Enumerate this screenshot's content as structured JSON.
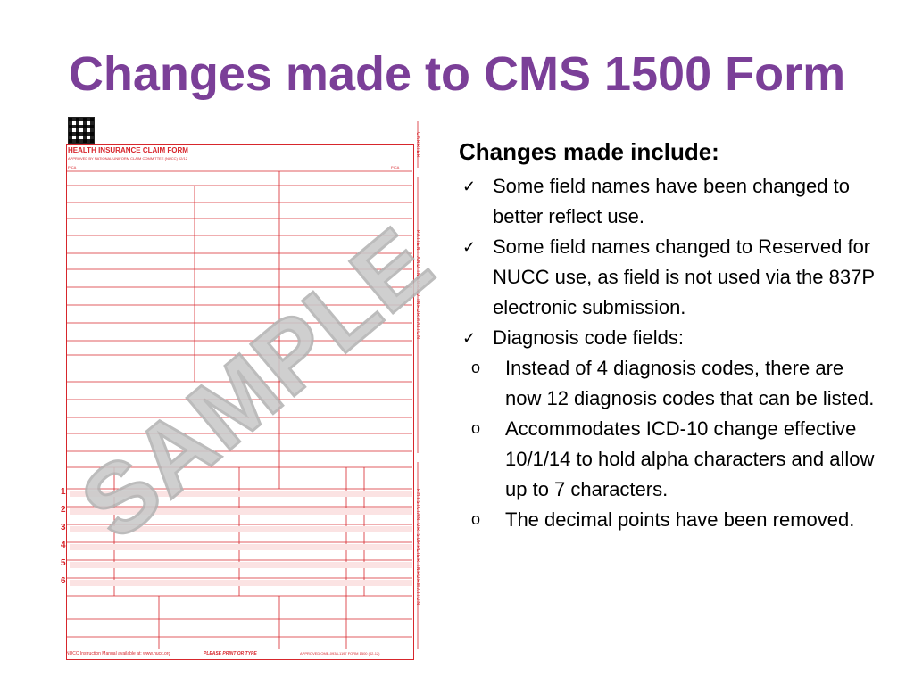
{
  "slide": {
    "title": "Changes made to CMS 1500 Form"
  },
  "form_image": {
    "heading": "HEALTH INSURANCE CLAIM FORM",
    "subheading": "APPROVED BY NATIONAL UNIFORM CLAIM COMMITTEE (NUCC) 02/12",
    "pica_left": "PICA",
    "pica_right": "PICA",
    "watermark": "SAMPLE",
    "side_top": "CARRIER",
    "side_middle": "PATIENT AND INSURED INFORMATION",
    "side_bottom": "PHYSICIAN OR SUPPLIER INFORMATION",
    "line_numbers": [
      "1",
      "2",
      "3",
      "4",
      "5",
      "6"
    ],
    "footer_left": "NUCC Instruction Manual available at: www.nucc.org",
    "footer_center": "PLEASE PRINT OR TYPE",
    "footer_right": "APPROVED OMB-0938-1197 FORM 1500 (02-12)",
    "accent_color": "#d7262c"
  },
  "content": {
    "heading": "Changes made include:",
    "bullets": [
      {
        "text": "Some field names have been changed to better reflect use."
      },
      {
        "text": "Some field names changed to Reserved for NUCC use, as field is not used via the 837P electronic submission."
      },
      {
        "text": "Diagnosis code fields:",
        "sub": [
          "Instead of 4 diagnosis codes, there are now 12 diagnosis codes that can be listed.",
          "Accommodates ICD-10 change effective 10/1/14 to hold alpha characters and allow up to 7 characters.",
          "The decimal points have been removed."
        ]
      }
    ]
  },
  "colors": {
    "title": "#7b3f98",
    "text": "#000000"
  }
}
